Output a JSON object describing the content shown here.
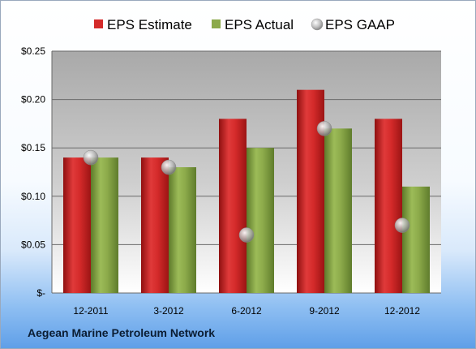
{
  "footer": {
    "company": "Aegean Marine Petroleum Network"
  },
  "legend": [
    "EPS Estimate",
    "EPS Actual",
    "EPS GAAP"
  ],
  "colors": {
    "estimate": "#d42a2a",
    "actual": "#8caa4a",
    "gaap": "#b9bcc0"
  },
  "chart_data": {
    "type": "bar",
    "categories": [
      "12-2011",
      "3-2012",
      "6-2012",
      "9-2012",
      "12-2012"
    ],
    "series": [
      {
        "name": "EPS Estimate",
        "values": [
          0.14,
          0.14,
          0.18,
          0.21,
          0.18
        ]
      },
      {
        "name": "EPS Actual",
        "values": [
          0.14,
          0.13,
          0.15,
          0.17,
          0.11
        ]
      },
      {
        "name": "EPS GAAP",
        "values": [
          0.14,
          0.13,
          0.06,
          0.17,
          0.07
        ],
        "marker": "circle"
      }
    ],
    "ylim": [
      0,
      0.25
    ],
    "yticks": [
      0,
      0.05,
      0.1,
      0.15,
      0.2,
      0.25
    ],
    "ytick_labels": [
      "$-",
      "$0.05",
      "$0.10",
      "$0.15",
      "$0.20",
      "$0.25"
    ],
    "grid": true,
    "legend_position": "top"
  }
}
